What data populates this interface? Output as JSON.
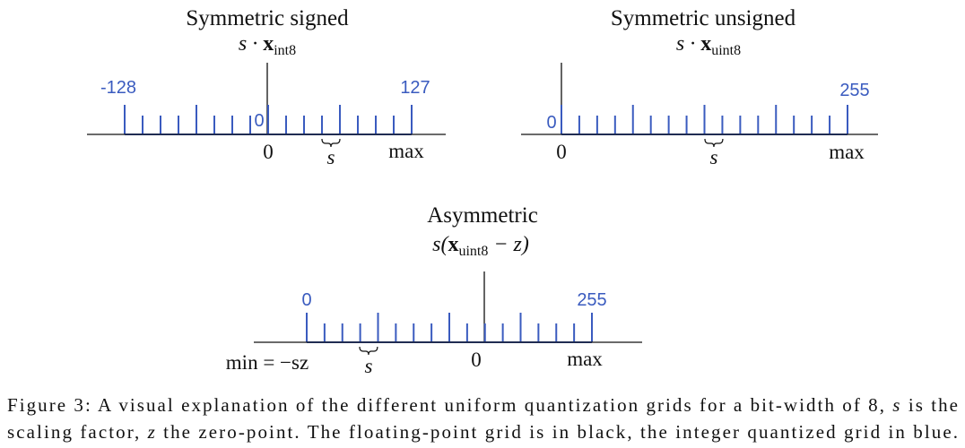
{
  "panels": [
    {
      "title": "Symmetric signed",
      "formula": [
        "s · ",
        "x",
        "int8"
      ],
      "grid_labels": [
        "-128",
        "0",
        "127"
      ],
      "float_labels": [
        "0",
        "s",
        "max"
      ]
    },
    {
      "title": "Symmetric unsigned",
      "formula": [
        "s · ",
        "x",
        "uint8"
      ],
      "grid_labels": [
        "0",
        "255"
      ],
      "float_labels": [
        "0",
        "s",
        "max"
      ]
    },
    {
      "title": "Asymmetric",
      "formula": [
        "s(",
        "x",
        "uint8",
        " − z)"
      ],
      "grid_labels": [
        "0",
        "255"
      ],
      "float_labels": [
        "min = −sz",
        "s",
        "0",
        "max"
      ]
    }
  ],
  "caption": {
    "line1": [
      "Figure 3: A visual explanation of the different uniform quantization grids for a bit-width of 8, ",
      "s",
      " is the"
    ],
    "line2": [
      "scaling factor, ",
      "z",
      " the zero-point. The floating-point grid is in black, the integer quantized grid in blue."
    ]
  }
}
